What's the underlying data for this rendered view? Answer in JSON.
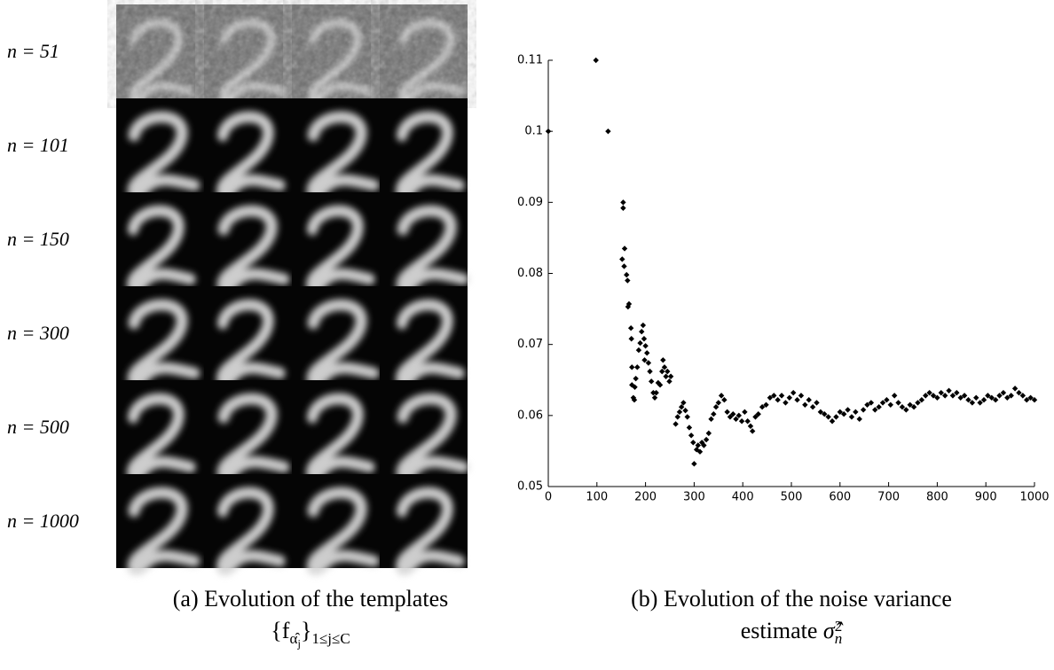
{
  "panel_a": {
    "row_labels": [
      "n = 51",
      "n = 101",
      "n = 150",
      "n = 300",
      "n = 500",
      "n = 1000"
    ],
    "caption": {
      "line1": "(a) Evolution of the templates",
      "line2": [
        "{f",
        "α̂",
        "j",
        "}",
        "1≤j≤C"
      ]
    }
  },
  "chart_data": {
    "type": "scatter",
    "color": "#000000",
    "x": [
      0,
      98,
      123,
      154,
      154,
      152,
      157,
      156,
      161,
      163,
      166,
      164,
      170,
      171,
      172,
      172,
      175,
      177,
      178,
      180,
      183,
      186,
      189,
      192,
      195,
      197,
      200,
      203,
      198,
      206,
      209,
      212,
      216,
      219,
      222,
      226,
      230,
      234,
      236,
      239,
      242,
      245,
      249,
      252,
      262,
      266,
      270,
      274,
      278,
      282,
      286,
      290,
      294,
      298,
      300,
      305,
      308,
      312,
      316,
      320,
      325,
      330,
      335,
      340,
      345,
      350,
      356,
      362,
      368,
      374,
      380,
      386,
      392,
      398,
      404,
      410,
      416,
      420,
      426,
      432,
      440,
      448,
      456,
      464,
      472,
      480,
      488,
      496,
      504,
      512,
      520,
      528,
      536,
      544,
      552,
      560,
      568,
      576,
      584,
      592,
      600,
      608,
      616,
      624,
      632,
      640,
      648,
      656,
      664,
      672,
      680,
      688,
      696,
      704,
      712,
      720,
      728,
      736,
      744,
      752,
      760,
      768,
      776,
      784,
      792,
      800,
      808,
      816,
      824,
      832,
      840,
      848,
      856,
      864,
      872,
      880,
      888,
      896,
      904,
      912,
      920,
      928,
      936,
      944,
      952,
      960,
      968,
      976,
      984,
      992,
      1000
    ],
    "values": [
      0.1,
      0.11,
      0.1,
      0.09,
      0.0892,
      0.082,
      0.0835,
      0.081,
      0.0798,
      0.079,
      0.0757,
      0.0753,
      0.0723,
      0.0708,
      0.0668,
      0.0643,
      0.0625,
      0.0622,
      0.064,
      0.0652,
      0.0668,
      0.0692,
      0.0702,
      0.0718,
      0.0727,
      0.0708,
      0.0698,
      0.0688,
      0.0678,
      0.0674,
      0.0662,
      0.0648,
      0.0632,
      0.0625,
      0.0632,
      0.0646,
      0.0643,
      0.0662,
      0.0678,
      0.0668,
      0.0655,
      0.0662,
      0.0648,
      0.0655,
      0.0588,
      0.0598,
      0.0605,
      0.0612,
      0.0618,
      0.0607,
      0.0598,
      0.0583,
      0.0572,
      0.0562,
      0.0532,
      0.0552,
      0.0558,
      0.0549,
      0.0562,
      0.0558,
      0.0566,
      0.0575,
      0.0595,
      0.0602,
      0.0612,
      0.0618,
      0.0628,
      0.0622,
      0.0605,
      0.0598,
      0.0602,
      0.0595,
      0.06,
      0.0592,
      0.0605,
      0.0592,
      0.0585,
      0.0578,
      0.0598,
      0.0602,
      0.0612,
      0.0615,
      0.0625,
      0.0628,
      0.0622,
      0.0628,
      0.0618,
      0.0625,
      0.0632,
      0.0622,
      0.0628,
      0.0615,
      0.0622,
      0.0612,
      0.0618,
      0.0605,
      0.0602,
      0.0598,
      0.0592,
      0.0598,
      0.0605,
      0.0602,
      0.0608,
      0.0598,
      0.0605,
      0.0595,
      0.0608,
      0.0615,
      0.0618,
      0.0608,
      0.0612,
      0.0618,
      0.0622,
      0.0615,
      0.0628,
      0.0618,
      0.0612,
      0.0608,
      0.0615,
      0.0612,
      0.0618,
      0.0622,
      0.0628,
      0.0632,
      0.0628,
      0.0625,
      0.0632,
      0.0628,
      0.0635,
      0.0628,
      0.0632,
      0.0625,
      0.0628,
      0.0622,
      0.0618,
      0.0625,
      0.0618,
      0.0622,
      0.0628,
      0.0625,
      0.0622,
      0.0628,
      0.0632,
      0.0625,
      0.0628,
      0.0638,
      0.0632,
      0.0628,
      0.0622,
      0.0625,
      0.0622
    ],
    "xlim": [
      0,
      1000
    ],
    "ylim": [
      0.05,
      0.11
    ],
    "xticks": [
      0,
      100,
      200,
      300,
      400,
      500,
      600,
      700,
      800,
      900,
      1000
    ],
    "yticks": [
      0.05,
      0.06,
      0.07,
      0.08,
      0.09,
      0.1,
      0.11
    ],
    "caption": {
      "line1": "(b) Evolution of the noise variance",
      "line2": [
        "estimate ",
        "σ̂",
        "n",
        "2"
      ]
    }
  }
}
